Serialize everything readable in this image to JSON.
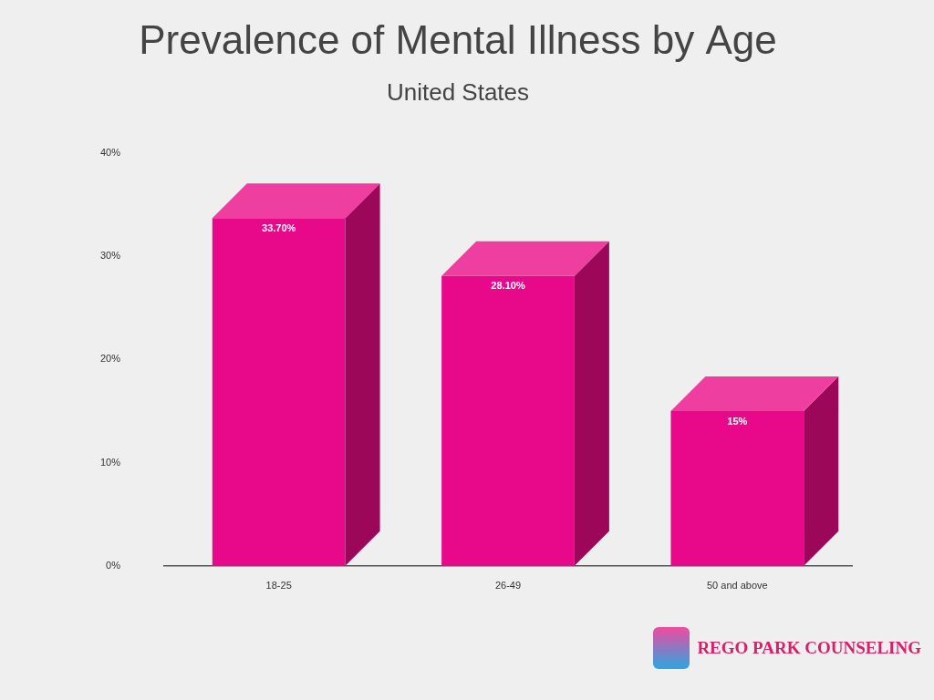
{
  "chart_data": {
    "type": "bar",
    "title": "Prevalence of Mental Illness by Age",
    "subtitle": "United States",
    "categories": [
      "18-25",
      "26-49",
      "50 and above"
    ],
    "values": [
      33.7,
      28.1,
      15
    ],
    "value_labels": [
      "33.70%",
      "28.10%",
      "15%"
    ],
    "data_labels": true,
    "color": "#e8098a",
    "ylim": [
      0,
      40
    ],
    "yticks": [
      {
        "value": 0,
        "label": "0%"
      },
      {
        "value": 10,
        "label": "10%"
      },
      {
        "value": 20,
        "label": "20%"
      },
      {
        "value": 30,
        "label": "30%"
      },
      {
        "value": 40,
        "label": "40%"
      }
    ],
    "grid": false,
    "annotations": [
      "REGO PARK COUNSELING"
    ]
  }
}
